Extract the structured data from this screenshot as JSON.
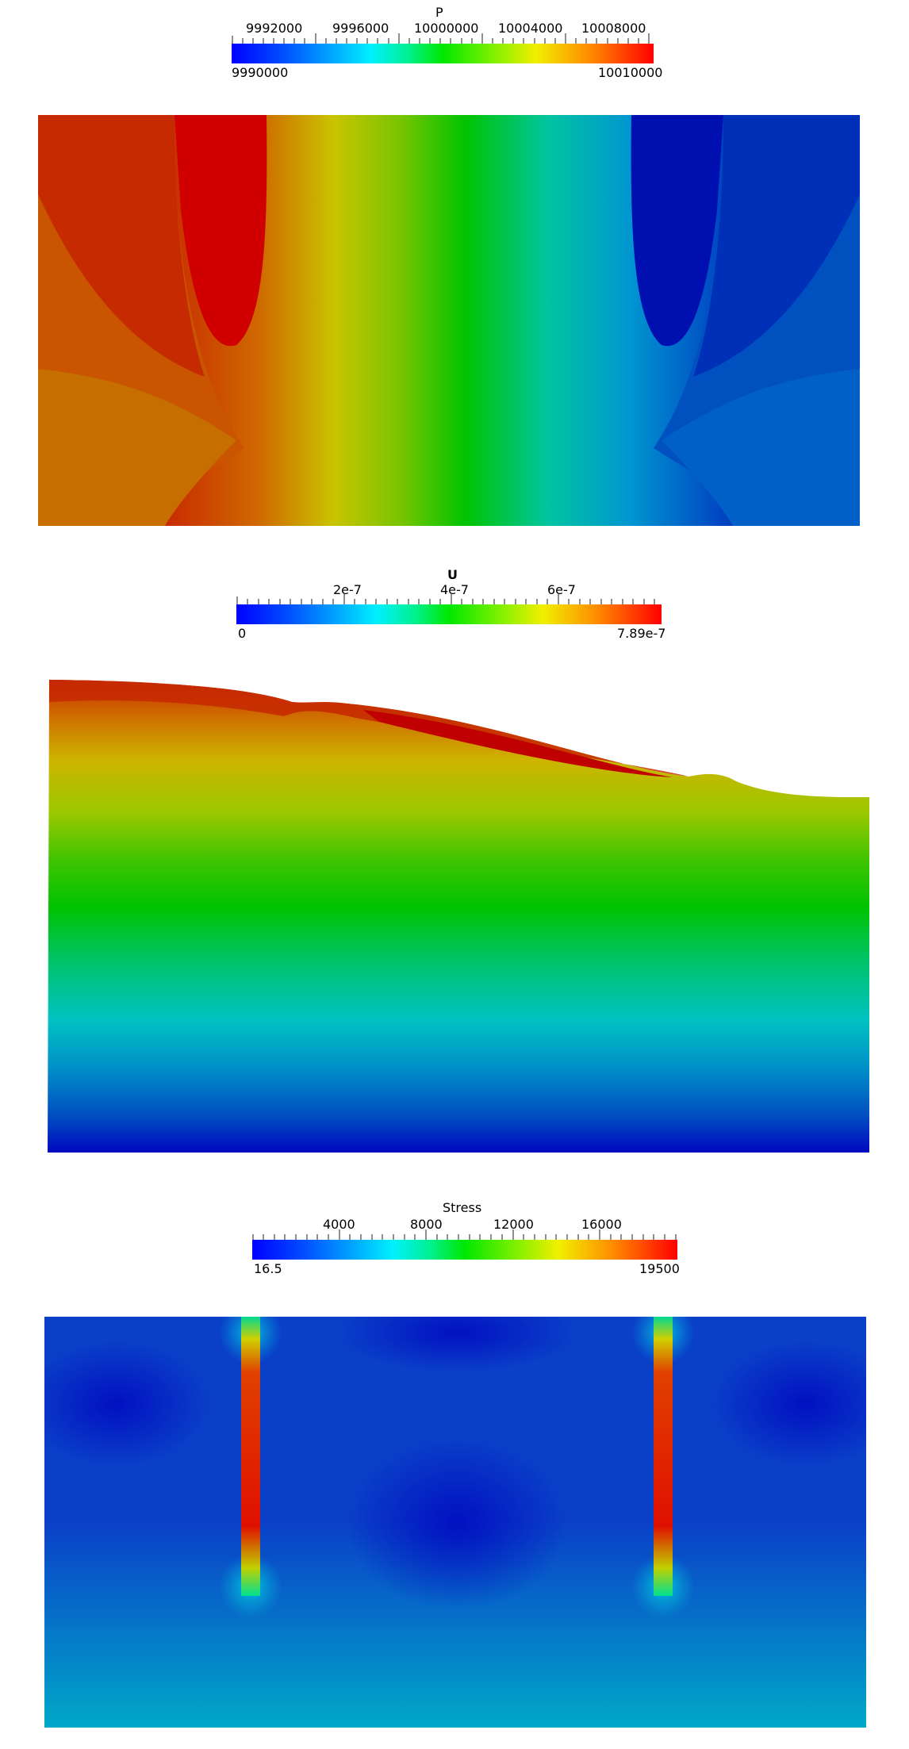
{
  "panels": {
    "pressure": {
      "title": "P",
      "ticks": [
        "9992000",
        "9996000",
        "10000000",
        "10004000",
        "10008000"
      ],
      "min": "9990000",
      "max": "10010000",
      "colormap": [
        "#0000ff",
        "#0078ff",
        "#00d8ff",
        "#00e8a0",
        "#00e800",
        "#7de800",
        "#e8e800",
        "#ff9000",
        "#ff0000"
      ]
    },
    "displacement": {
      "title": "U",
      "ticks": [
        "2e-7",
        "4e-7",
        "6e-7"
      ],
      "min": "0",
      "max": "7.89e-7",
      "colormap": [
        "#0000ff",
        "#0078ff",
        "#00d8ff",
        "#00e8a0",
        "#00e800",
        "#7de800",
        "#e8e800",
        "#ff9000",
        "#ff0000"
      ]
    },
    "stress": {
      "title": "Stress",
      "ticks": [
        "4000",
        "8000",
        "12000",
        "16000"
      ],
      "min": "16.5",
      "max": "19500",
      "colormap": [
        "#0000ff",
        "#0078ff",
        "#00d8ff",
        "#00e8a0",
        "#00e800",
        "#7de800",
        "#e8e800",
        "#ff9000",
        "#ff0000"
      ]
    }
  }
}
